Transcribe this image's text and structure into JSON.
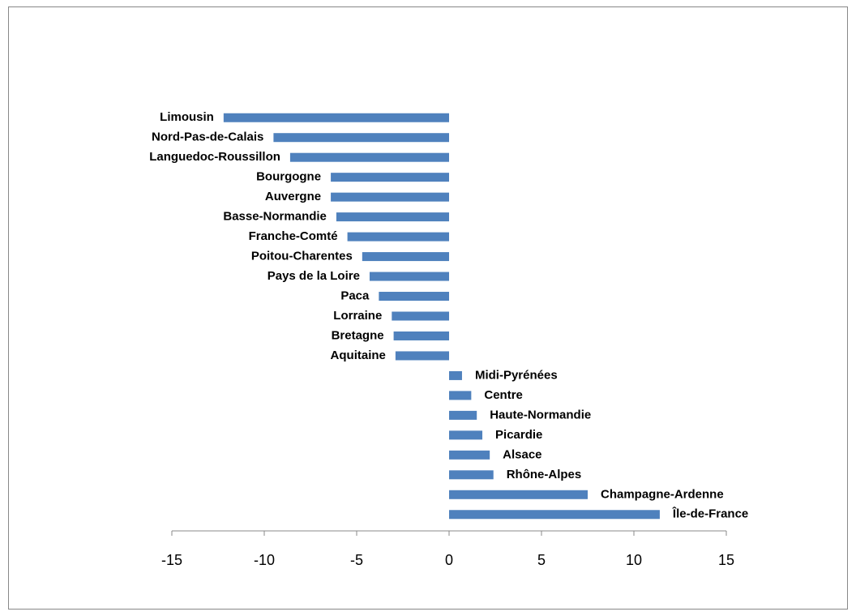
{
  "chart_data": {
    "type": "barh",
    "categories": [
      "Limousin",
      "Nord-Pas-de-Calais",
      "Languedoc-Roussillon",
      "Bourgogne",
      "Auvergne",
      "Basse-Normandie",
      "Franche-Comté",
      "Poitou-Charentes",
      "Pays de la Loire",
      "Paca",
      "Lorraine",
      "Bretagne",
      "Aquitaine",
      "Midi-Pyrénées",
      "Centre",
      "Haute-Normandie",
      "Picardie",
      "Alsace",
      "Rhône-Alpes",
      "Champagne-Ardenne",
      "Île-de-France"
    ],
    "values": [
      -12.2,
      -9.5,
      -8.6,
      -6.4,
      -6.4,
      -6.1,
      -5.5,
      -4.7,
      -4.3,
      -3.8,
      -3.1,
      -3.0,
      -2.9,
      0.7,
      1.2,
      1.5,
      1.8,
      2.2,
      2.4,
      7.5,
      11.4
    ],
    "color": "#4f81bd",
    "xlim": [
      -15,
      15
    ],
    "xticks": [
      -15,
      -10,
      -5,
      0,
      5,
      10,
      15
    ]
  }
}
